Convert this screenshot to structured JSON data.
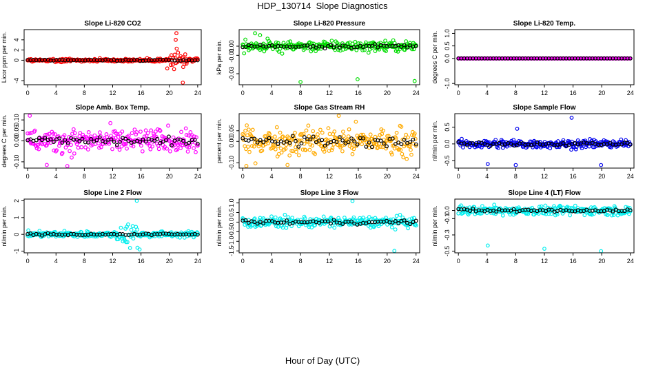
{
  "figure": {
    "title": "HDP_130714  Slope Diagnostics",
    "xlabel": "Hour of Day (UTC)"
  },
  "chart_data": [
    {
      "type": "scatter",
      "title": "Slope Li-820 CO2",
      "ylabel": "Licor ppm per min.",
      "color": "#ff0000",
      "xlim": [
        -0.5,
        24.5
      ],
      "ylim": [
        -4.8,
        6.0
      ],
      "xticks": [
        0,
        4,
        8,
        12,
        16,
        20,
        24
      ],
      "yticks": [
        {
          "v": -4,
          "label": "-4"
        },
        {
          "v": 0,
          "label": "0"
        },
        {
          "v": 2,
          "label": "2"
        },
        {
          "v": 4,
          "label": "4"
        }
      ],
      "noise": {
        "base": 0.35,
        "spikes": [
          [
            20,
            22.5,
            5.0
          ]
        ],
        "outliers": [
          [
            21.0,
            5.3
          ],
          [
            21.9,
            -4.4
          ],
          [
            19.7,
            -1.6
          ],
          [
            20.9,
            4.0
          ]
        ]
      }
    },
    {
      "type": "scatter",
      "title": "Slope Li-820 Pressure",
      "ylabel": "kPa per min.",
      "color": "#00dd00",
      "xlim": [
        -0.5,
        24.5
      ],
      "ylim": [
        -0.042,
        0.018
      ],
      "xticks": [
        0,
        4,
        8,
        12,
        16,
        20,
        24
      ],
      "yticks": [
        {
          "v": -0.03,
          "label": "-0.03"
        },
        {
          "v": -0.01,
          "label": "-0.01"
        },
        {
          "v": 0,
          "label": "0.00"
        }
      ],
      "noise": {
        "base": 0.006,
        "spikes": [],
        "outliers": [
          [
            8.0,
            -0.039
          ],
          [
            15.9,
            -0.036
          ],
          [
            23.8,
            -0.038
          ],
          [
            1.7,
            0.014
          ],
          [
            2.4,
            0.012
          ]
        ]
      }
    },
    {
      "type": "scatter",
      "title": "Slope Li-820 Temp.",
      "ylabel": "degrees C per min.",
      "color": "#ff00ff",
      "xlim": [
        -0.5,
        24.5
      ],
      "ylim": [
        -1.05,
        1.15
      ],
      "xticks": [
        0,
        4,
        8,
        12,
        16,
        20,
        24
      ],
      "yticks": [
        {
          "v": -1,
          "label": "-1.0"
        },
        {
          "v": 0,
          "label": "0.0"
        },
        {
          "v": 0.5,
          "label": "0.5"
        },
        {
          "v": 1,
          "label": "1.0"
        }
      ],
      "noise": {
        "base": 0.0,
        "spikes": [],
        "outliers": []
      }
    },
    {
      "type": "scatter",
      "title": "Slope Amb. Box Temp.",
      "ylabel": "degrees C per min.",
      "color": "#ff00ff",
      "xlim": [
        -0.5,
        24.5
      ],
      "ylim": [
        -0.13,
        0.13
      ],
      "xticks": [
        0,
        4,
        8,
        12,
        16,
        20,
        24
      ],
      "yticks": [
        {
          "v": -0.1,
          "label": "-0.10"
        },
        {
          "v": 0,
          "label": "0.00"
        },
        {
          "v": 0.05,
          "label": "0.05"
        },
        {
          "v": 0.1,
          "label": "0.10"
        }
      ],
      "noise": {
        "base": 0.06,
        "spikes": [],
        "outliers": [
          [
            0.3,
            0.12
          ],
          [
            2.7,
            -0.115
          ],
          [
            5.6,
            -0.12
          ]
        ]
      }
    },
    {
      "type": "scatter",
      "title": "Slope Gas Stream RH",
      "ylabel": "percent per min.",
      "color": "#ffaa00",
      "xlim": [
        -0.5,
        24.5
      ],
      "ylim": [
        -0.125,
        0.13
      ],
      "xticks": [
        0,
        4,
        8,
        12,
        16,
        20,
        24
      ],
      "yticks": [
        {
          "v": -0.1,
          "label": "-0.10"
        },
        {
          "v": 0,
          "label": "0.00"
        },
        {
          "v": 0.05,
          "label": "0.05"
        }
      ],
      "noise": {
        "base": 0.07,
        "spikes": [],
        "outliers": [
          [
            13.3,
            0.12
          ],
          [
            0.5,
            -0.115
          ],
          [
            6.2,
            -0.11
          ]
        ]
      }
    },
    {
      "type": "scatter",
      "title": "Slope Sample Flow",
      "ylabel": "nl/min per min.",
      "color": "#0000ee",
      "xlim": [
        -0.5,
        24.5
      ],
      "ylim": [
        -0.72,
        0.9
      ],
      "xticks": [
        0,
        4,
        8,
        12,
        16,
        20,
        24
      ],
      "yticks": [
        {
          "v": -0.5,
          "label": "-0.5"
        },
        {
          "v": 0,
          "label": "0.0"
        },
        {
          "v": 0.5,
          "label": "0.5"
        }
      ],
      "noise": {
        "base": 0.14,
        "spikes": [],
        "outliers": [
          [
            15.8,
            0.78
          ],
          [
            4.1,
            -0.6
          ],
          [
            8.0,
            -0.63
          ],
          [
            19.9,
            -0.63
          ],
          [
            8.2,
            0.45
          ]
        ]
      }
    },
    {
      "type": "scatter",
      "title": "Slope Line 2 Flow",
      "ylabel": "nl/min per min.",
      "color": "#00eeee",
      "xlim": [
        -0.5,
        24.5
      ],
      "ylim": [
        -1.1,
        2.1
      ],
      "xticks": [
        0,
        4,
        8,
        12,
        16,
        20,
        24
      ],
      "yticks": [
        {
          "v": -1,
          "label": "-1"
        },
        {
          "v": 0,
          "label": "0"
        },
        {
          "v": 1,
          "label": "1"
        },
        {
          "v": 2,
          "label": "2"
        }
      ],
      "noise": {
        "base": 0.18,
        "spikes": [
          [
            12.5,
            15.5,
            1.6
          ],
          [
            5.0,
            7.5,
            0.5
          ]
        ],
        "outliers": [
          [
            15.4,
            2.0
          ],
          [
            15.5,
            -0.8
          ],
          [
            15.8,
            -0.9
          ]
        ]
      }
    },
    {
      "type": "scatter",
      "title": "Slope Line 3 Flow",
      "ylabel": "nl/min per min.",
      "color": "#00eeee",
      "xlim": [
        -0.5,
        24.5
      ],
      "ylim": [
        -1.6,
        1.2
      ],
      "xticks": [
        0,
        4,
        8,
        12,
        16,
        20,
        24
      ],
      "yticks": [
        {
          "v": -1.5,
          "label": "-1.5"
        },
        {
          "v": -1,
          "label": "-1.0"
        },
        {
          "v": -0.5,
          "label": "-0.5"
        },
        {
          "v": 0,
          "label": "0.0"
        },
        {
          "v": 0.5,
          "label": "0.5"
        },
        {
          "v": 1,
          "label": "1.0"
        }
      ],
      "noise": {
        "base": 0.3,
        "spikes": [],
        "outliers": [
          [
            15.2,
            1.1
          ],
          [
            21.0,
            -1.5
          ]
        ]
      }
    },
    {
      "type": "scatter",
      "title": "Slope Line 4 (LT) Flow",
      "ylabel": "nl/min per min.",
      "color": "#00eeee",
      "xlim": [
        -0.5,
        24.5
      ],
      "ylim": [
        -0.52,
        0.14
      ],
      "xticks": [
        0,
        4,
        8,
        12,
        16,
        20,
        24
      ],
      "yticks": [
        {
          "v": -0.5,
          "label": "-0.5"
        },
        {
          "v": -0.3,
          "label": "-0.3"
        },
        {
          "v": -0.1,
          "label": "-0.1"
        },
        {
          "v": 0,
          "label": "0.0"
        }
      ],
      "noise": {
        "base": 0.06,
        "spikes": [],
        "outliers": [
          [
            4.1,
            -0.43
          ],
          [
            12.0,
            -0.47
          ],
          [
            19.9,
            -0.5
          ]
        ]
      }
    }
  ]
}
